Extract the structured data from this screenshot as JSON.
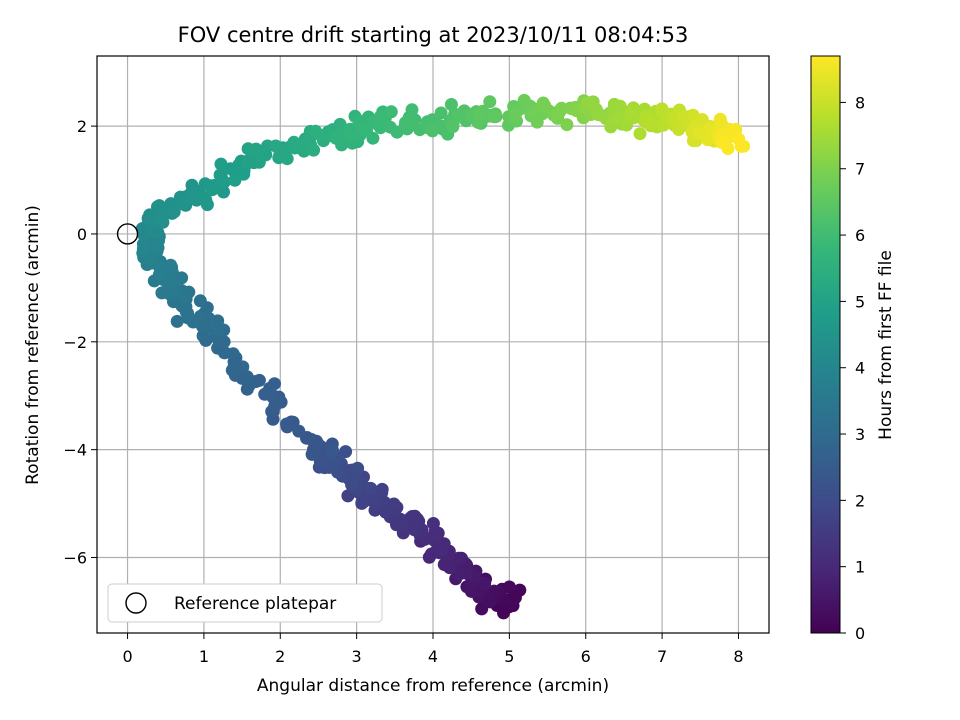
{
  "chart_data": {
    "type": "scatter",
    "title": "FOV centre drift starting at 2023/10/11 08:04:53",
    "xlabel": "Angular distance from reference (arcmin)",
    "ylabel": "Rotation from reference (arcmin)",
    "xlim": [
      -0.4,
      8.4
    ],
    "ylim": [
      -7.4,
      3.3
    ],
    "x_ticks": [
      0,
      1,
      2,
      3,
      4,
      5,
      6,
      7,
      8
    ],
    "x_tick_labels": [
      "0",
      "1",
      "2",
      "3",
      "4",
      "5",
      "6",
      "7",
      "8"
    ],
    "y_ticks": [
      -6,
      -4,
      -2,
      0,
      2
    ],
    "y_tick_labels": [
      "−6",
      "−4",
      "−2",
      "0",
      "2"
    ],
    "grid": true,
    "legend": {
      "position": "lower-left",
      "entries": [
        {
          "label": "Reference platepar",
          "marker": "open-circle"
        }
      ]
    },
    "reference_point": {
      "x": 0.0,
      "y": 0.0
    },
    "colorbar": {
      "label": "Hours from first FF file",
      "colormap": "viridis",
      "range": [
        0,
        8.7
      ],
      "ticks": [
        0,
        1,
        2,
        3,
        4,
        5,
        6,
        7,
        8
      ],
      "tick_labels": [
        "0",
        "1",
        "2",
        "3",
        "4",
        "5",
        "6",
        "7",
        "8"
      ]
    },
    "path_keypoints": [
      {
        "t": 0.0,
        "x": 5.05,
        "y": -6.9
      },
      {
        "t": 0.3,
        "x": 4.75,
        "y": -6.7
      },
      {
        "t": 0.6,
        "x": 4.45,
        "y": -6.35
      },
      {
        "t": 0.9,
        "x": 4.15,
        "y": -5.95
      },
      {
        "t": 1.2,
        "x": 3.8,
        "y": -5.5
      },
      {
        "t": 1.5,
        "x": 3.4,
        "y": -5.15
      },
      {
        "t": 1.8,
        "x": 3.05,
        "y": -4.7
      },
      {
        "t": 2.1,
        "x": 2.75,
        "y": -4.3
      },
      {
        "t": 2.35,
        "x": 2.5,
        "y": -3.95
      },
      {
        "t": 2.45,
        "x": 2.1,
        "y": -3.4
      },
      {
        "t": 2.75,
        "x": 1.6,
        "y": -2.6
      },
      {
        "t": 3.05,
        "x": 1.15,
        "y": -1.8
      },
      {
        "t": 3.4,
        "x": 0.65,
        "y": -1.1
      },
      {
        "t": 3.8,
        "x": 0.35,
        "y": -0.5
      },
      {
        "t": 4.1,
        "x": 0.25,
        "y": 0.1
      },
      {
        "t": 4.4,
        "x": 0.6,
        "y": 0.55
      },
      {
        "t": 4.7,
        "x": 1.2,
        "y": 0.95
      },
      {
        "t": 5.0,
        "x": 1.75,
        "y": 1.45
      },
      {
        "t": 5.4,
        "x": 2.5,
        "y": 1.8
      },
      {
        "t": 5.8,
        "x": 3.2,
        "y": 2.05
      },
      {
        "t": 6.2,
        "x": 4.2,
        "y": 2.15
      },
      {
        "t": 6.6,
        "x": 5.0,
        "y": 2.2
      },
      {
        "t": 7.0,
        "x": 5.8,
        "y": 2.3
      },
      {
        "t": 7.5,
        "x": 6.6,
        "y": 2.2
      },
      {
        "t": 8.0,
        "x": 7.3,
        "y": 2.1
      },
      {
        "t": 8.7,
        "x": 8.0,
        "y": 1.75
      }
    ],
    "approx_point_count": 620,
    "scatter_x": 0.13,
    "scatter_y": 0.16
  }
}
